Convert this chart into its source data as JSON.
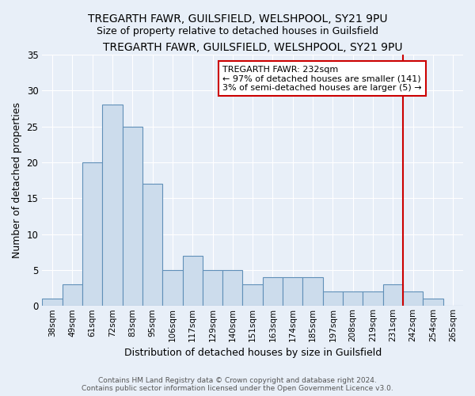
{
  "title": "TREGARTH FAWR, GUILSFIELD, WELSHPOOL, SY21 9PU",
  "subtitle": "Size of property relative to detached houses in Guilsfield",
  "xlabel": "Distribution of detached houses by size in Guilsfield",
  "ylabel": "Number of detached properties",
  "categories": [
    "38sqm",
    "49sqm",
    "61sqm",
    "72sqm",
    "83sqm",
    "95sqm",
    "106sqm",
    "117sqm",
    "129sqm",
    "140sqm",
    "151sqm",
    "163sqm",
    "174sqm",
    "185sqm",
    "197sqm",
    "208sqm",
    "219sqm",
    "231sqm",
    "242sqm",
    "254sqm",
    "265sqm"
  ],
  "values": [
    1,
    3,
    20,
    28,
    25,
    17,
    5,
    7,
    5,
    5,
    3,
    4,
    4,
    4,
    2,
    2,
    2,
    3,
    2,
    1,
    0
  ],
  "bar_color": "#ccdcec",
  "bar_edge_color": "#6090b8",
  "background_color": "#e8eff8",
  "grid_color": "#ffffff",
  "vline_color": "#cc0000",
  "vline_pos": 17,
  "annotation_title": "TREGARTH FAWR: 232sqm",
  "annotation_line1": "← 97% of detached houses are smaller (141)",
  "annotation_line2": "3% of semi-detached houses are larger (5) →",
  "annotation_box_color": "#ffffff",
  "annotation_border_color": "#cc0000",
  "footer1": "Contains HM Land Registry data © Crown copyright and database right 2024.",
  "footer2": "Contains public sector information licensed under the Open Government Licence v3.0.",
  "ylim": [
    0,
    35
  ],
  "yticks": [
    0,
    5,
    10,
    15,
    20,
    25,
    30,
    35
  ]
}
